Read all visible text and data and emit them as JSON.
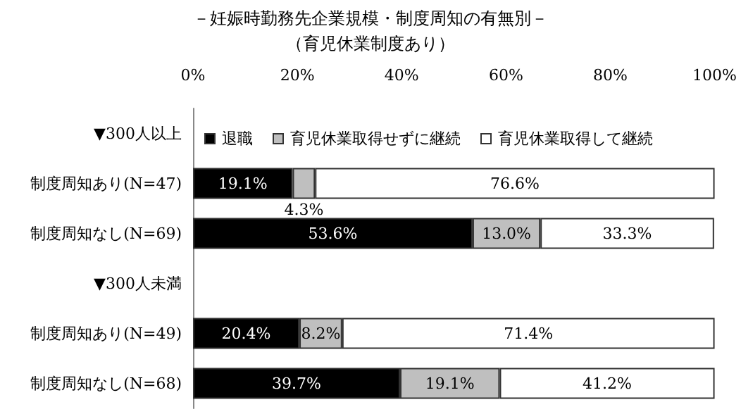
{
  "chart_data": {
    "type": "bar",
    "orientation": "horizontal",
    "stacked": true,
    "title": "－妊娠時勤務先企業規模・制度周知の有無別－",
    "subtitle": "（育児休業制度あり）",
    "categories": [
      "▼300人以上",
      "制度周知あり(N=47)",
      "制度周知なし(N=69)",
      "▼300人未満",
      "制度周知あり(N=49)",
      "制度周知なし(N=68)"
    ],
    "series": [
      {
        "name": "退職",
        "color": "#000000",
        "values": [
          null,
          19.1,
          53.6,
          null,
          20.4,
          39.7
        ],
        "value_labels": [
          null,
          "19.1%",
          "53.6%",
          null,
          "20.4%",
          "39.7%"
        ]
      },
      {
        "name": "育児休業取得せずに継続",
        "color": "#bfbfbf",
        "values": [
          null,
          4.3,
          13.0,
          null,
          8.2,
          19.1
        ],
        "value_labels": [
          null,
          "4.3%",
          "13.0%",
          null,
          "8.2%",
          "19.1%"
        ]
      },
      {
        "name": "育児休業取得して継続",
        "color": "#ffffff",
        "values": [
          null,
          76.6,
          33.3,
          null,
          71.4,
          41.2
        ],
        "value_labels": [
          null,
          "76.6%",
          "33.3%",
          null,
          "71.4%",
          "41.2%"
        ]
      }
    ],
    "xlim": [
      0,
      100
    ],
    "xticks": [
      {
        "value": 0,
        "label": "0%"
      },
      {
        "value": 20,
        "label": "20%"
      },
      {
        "value": 40,
        "label": "40%"
      },
      {
        "value": 60,
        "label": "60%"
      },
      {
        "value": 80,
        "label": "80%"
      },
      {
        "value": 100,
        "label": "100%"
      }
    ],
    "legend": "top left",
    "grid": false
  }
}
